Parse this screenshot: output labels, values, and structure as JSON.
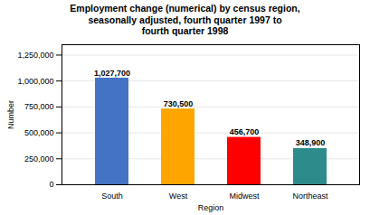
{
  "chart_data": {
    "type": "bar",
    "title": "Employment change (numerical) by census region,\nseasonally adjusted, fourth quarter 1997 to\nfourth quarter 1998",
    "xlabel": "Region",
    "ylabel": "Number",
    "categories": [
      "South",
      "West",
      "Midwest",
      "Northeast"
    ],
    "values": [
      1027700,
      730500,
      456700,
      348900
    ],
    "value_labels": [
      "1,027,700",
      "730,500",
      "456,700",
      "348,900"
    ],
    "colors": [
      "#4472C4",
      "#FFA500",
      "#FF0000",
      "#2E8B8B"
    ],
    "ylim": [
      0,
      1350000
    ],
    "yticks": [
      0,
      {
        "value": 250000,
        "label": "250,000"
      },
      {
        "value": 500000,
        "label": "500,000"
      },
      {
        "value": 750000,
        "label": "750,000"
      },
      {
        "value": 1000000,
        "label": "1,000,000"
      },
      {
        "value": 1250000,
        "label": "1,250,000"
      }
    ],
    "grid": true,
    "data_labels": true
  }
}
